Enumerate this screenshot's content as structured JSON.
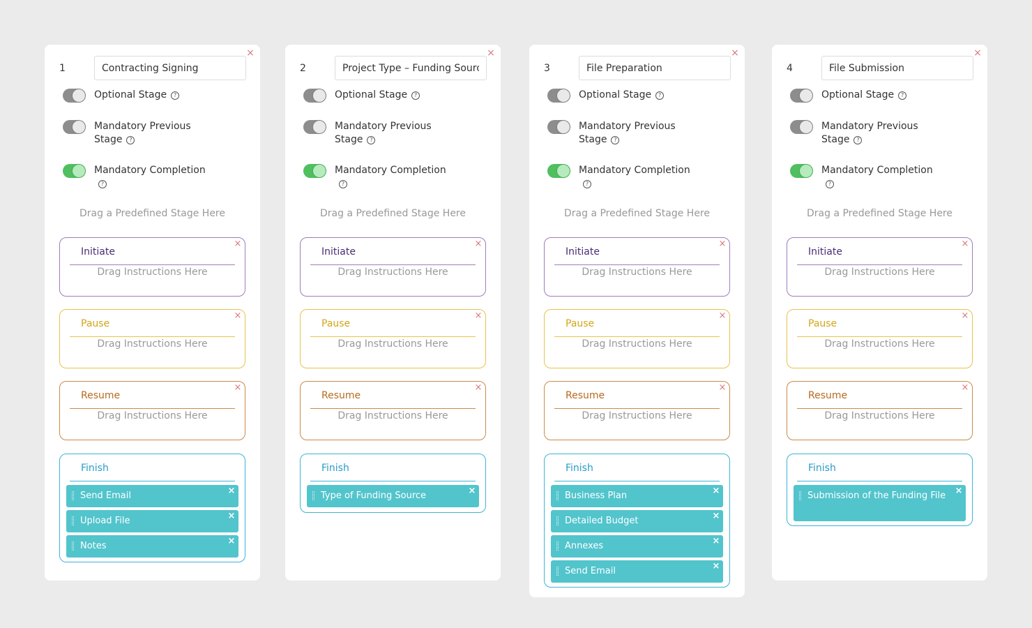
{
  "colors": {
    "background": "#ebebeb",
    "initiate": "#a07bbd",
    "initiate_title": "#4a2b73",
    "pause": "#e8c24b",
    "pause_title": "#d2a619",
    "resume": "#c98a4b",
    "resume_title": "#b86a1f",
    "finish": "#3bb5d8",
    "finish_title": "#2a9cc7",
    "chip": "#52c4cc",
    "toggle_on": "#4fbf5f",
    "toggle_off": "#8d8d8d",
    "close": "#d9777f"
  },
  "labels": {
    "optional": "Optional Stage",
    "mandatory_prev": "Mandatory Previous Stage",
    "mandatory_completion": "Mandatory Completion",
    "drop_zone": "Drag a Predefined Stage Here",
    "slot_hint": "Drag Instructions Here",
    "close_glyph": "×",
    "help_glyph": "?"
  },
  "icons": {
    "close": "close-icon",
    "help": "help-circle-icon",
    "grip": "drag-handle-icon"
  },
  "stages": [
    {
      "number": "1",
      "name": "Contracting Signing",
      "optional": false,
      "mandatory_prev": false,
      "mandatory_completion": true,
      "slots": {
        "initiate": {
          "title": "Initiate"
        },
        "pause": {
          "title": "Pause"
        },
        "resume": {
          "title": "Resume"
        },
        "finish": {
          "title": "Finish",
          "items": [
            "Send Email",
            "Upload File",
            "Notes"
          ]
        }
      }
    },
    {
      "number": "2",
      "name": "Project Type – Funding Source",
      "optional": false,
      "mandatory_prev": false,
      "mandatory_completion": true,
      "slots": {
        "initiate": {
          "title": "Initiate"
        },
        "pause": {
          "title": "Pause"
        },
        "resume": {
          "title": "Resume"
        },
        "finish": {
          "title": "Finish",
          "items": [
            "Type of Funding Source"
          ]
        }
      }
    },
    {
      "number": "3",
      "name": "File Preparation",
      "optional": false,
      "mandatory_prev": false,
      "mandatory_completion": true,
      "slots": {
        "initiate": {
          "title": "Initiate"
        },
        "pause": {
          "title": "Pause"
        },
        "resume": {
          "title": "Resume"
        },
        "finish": {
          "title": "Finish",
          "items": [
            "Business Plan",
            "Detailed Budget",
            "Annexes",
            "Send Email"
          ]
        }
      }
    },
    {
      "number": "4",
      "name": "File Submission",
      "optional": false,
      "mandatory_prev": false,
      "mandatory_completion": true,
      "slots": {
        "initiate": {
          "title": "Initiate"
        },
        "pause": {
          "title": "Pause"
        },
        "resume": {
          "title": "Resume"
        },
        "finish": {
          "title": "Finish",
          "items": [
            "Submission of the Funding File"
          ]
        }
      }
    }
  ]
}
